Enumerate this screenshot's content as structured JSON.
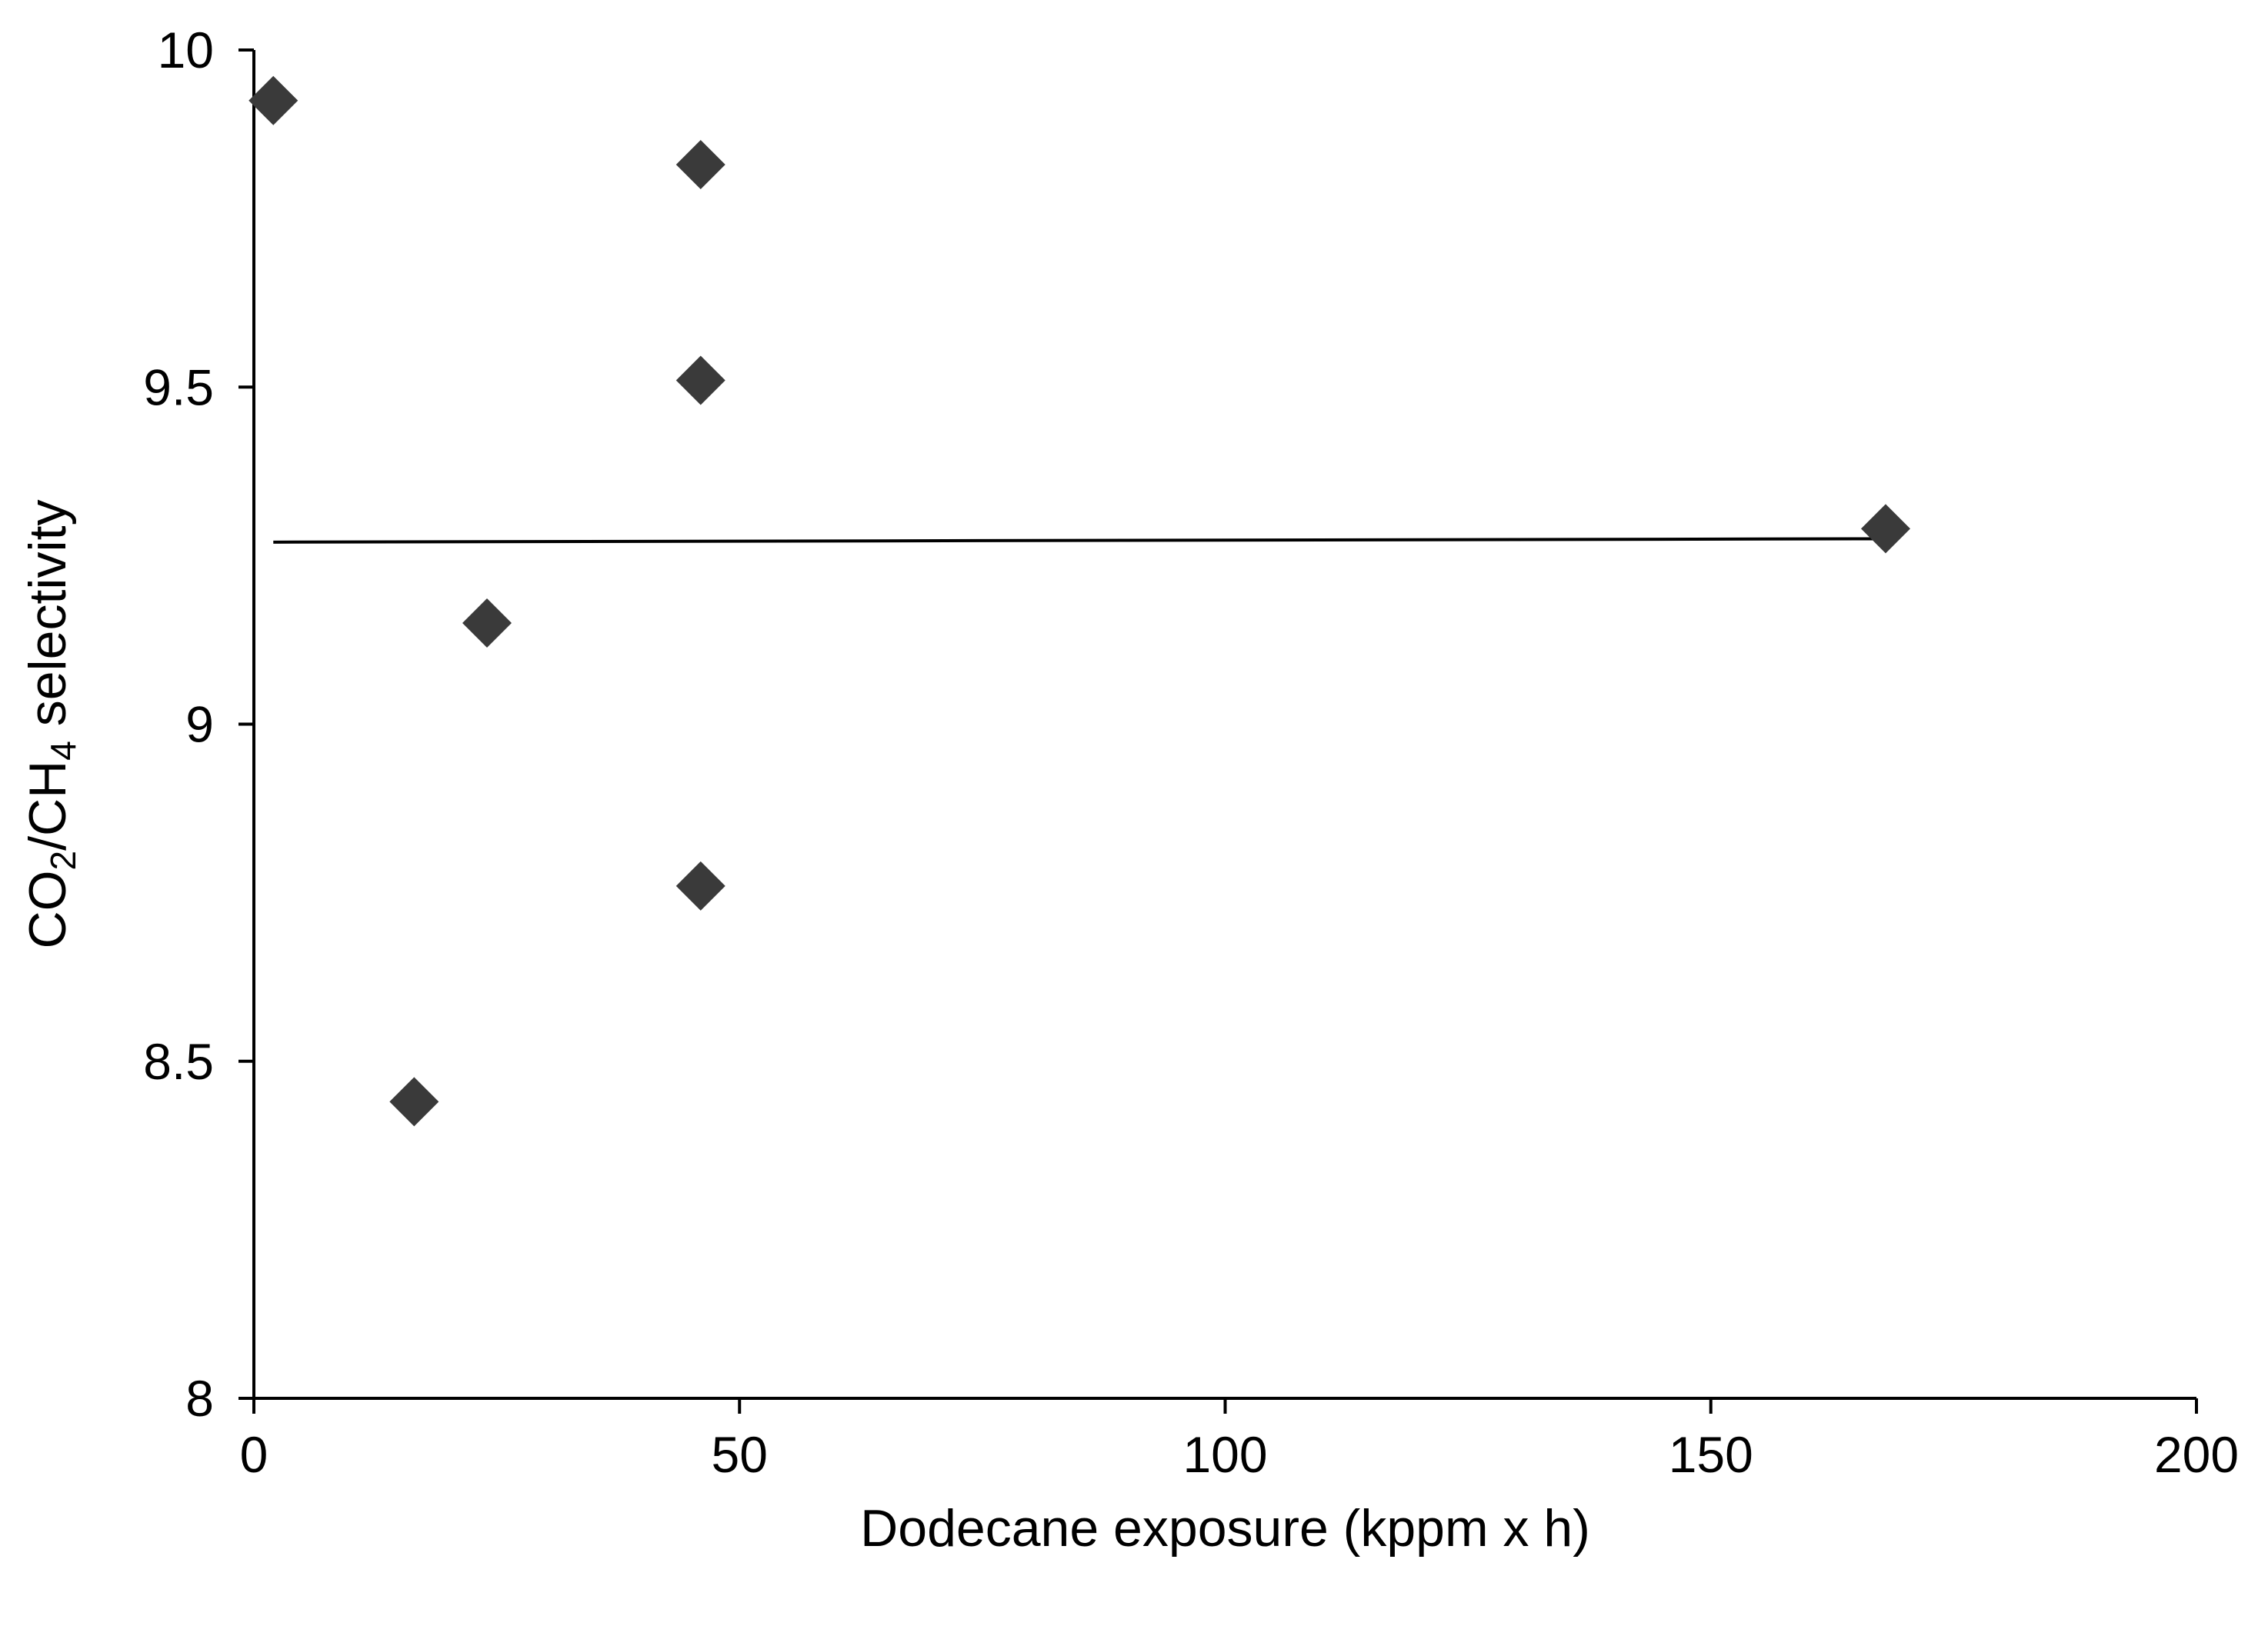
{
  "chart_data": {
    "type": "scatter",
    "xlabel": "Dodecane exposure (kppm x h)",
    "ylabel": {
      "parts": [
        {
          "text": "CO",
          "sub": false
        },
        {
          "text": "2",
          "sub": true
        },
        {
          "text": "/CH",
          "sub": false
        },
        {
          "text": "4",
          "sub": true
        },
        {
          "text": " selectivity",
          "sub": false
        }
      ]
    },
    "xlim": [
      0,
      200
    ],
    "ylim": [
      8,
      10
    ],
    "xticks": [
      {
        "value": 0,
        "label": "0"
      },
      {
        "value": 50,
        "label": "50"
      },
      {
        "value": 100,
        "label": "100"
      },
      {
        "value": 150,
        "label": "150"
      },
      {
        "value": 200,
        "label": "200"
      }
    ],
    "yticks": [
      {
        "value": 8,
        "label": "8"
      },
      {
        "value": 8.5,
        "label": "8.5"
      },
      {
        "value": 9,
        "label": "9"
      },
      {
        "value": 9.5,
        "label": "9.5"
      },
      {
        "value": 10,
        "label": "10"
      }
    ],
    "grid": false,
    "marker": "diamond",
    "marker_color": "#3a3a3a",
    "series": [
      {
        "points": [
          {
            "x": 2,
            "y": 9.925
          },
          {
            "x": 16.5,
            "y": 8.44
          },
          {
            "x": 24,
            "y": 9.15
          },
          {
            "x": 46,
            "y": 9.83
          },
          {
            "x": 46,
            "y": 9.51
          },
          {
            "x": 46,
            "y": 8.76
          },
          {
            "x": 168,
            "y": 9.29
          }
        ]
      }
    ],
    "trendline": {
      "x": [
        2,
        168
      ],
      "y": [
        9.27,
        9.275
      ],
      "color": "#000000"
    }
  }
}
